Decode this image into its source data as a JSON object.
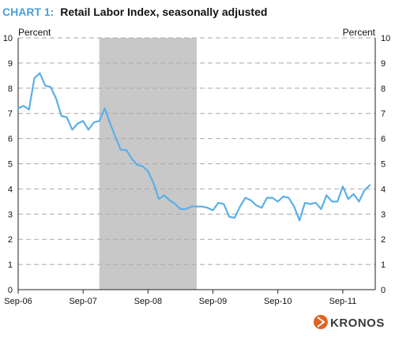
{
  "chart_data": {
    "type": "line",
    "title_prefix": "CHART 1:",
    "title": "Retail Labor Index, seasonally adjusted",
    "left_unit": "Percent",
    "right_unit": "Percent",
    "ylim": [
      0,
      10
    ],
    "y_ticks": [
      "0",
      "1",
      "2",
      "3",
      "4",
      "5",
      "6",
      "7",
      "8",
      "9",
      "10"
    ],
    "x_tick_labels": [
      "Sep-06",
      "Sep-07",
      "Sep-08",
      "Sep-09",
      "Sep-10",
      "Sep-11"
    ],
    "x_tick_months": [
      0,
      12,
      24,
      36,
      48,
      60
    ],
    "recession_shading": {
      "start": "Dec-07",
      "end": "Jun-09"
    },
    "grid": "horizontal dashed",
    "series": [
      {
        "start": "Sep-06",
        "frequency": "monthly",
        "color": "#5aafe8",
        "values": [
          7.2,
          7.3,
          7.15,
          8.4,
          8.6,
          8.1,
          8.05,
          7.6,
          6.9,
          6.85,
          6.35,
          6.6,
          6.7,
          6.35,
          6.65,
          6.7,
          7.2,
          6.6,
          6.05,
          5.55,
          5.55,
          5.2,
          4.95,
          4.9,
          4.7,
          4.25,
          3.6,
          3.75,
          3.55,
          3.4,
          3.2,
          3.2,
          3.3,
          3.3,
          3.3,
          3.25,
          3.15,
          3.45,
          3.4,
          2.9,
          2.85,
          3.3,
          3.65,
          3.55,
          3.35,
          3.25,
          3.65,
          3.65,
          3.5,
          3.7,
          3.65,
          3.3,
          2.75,
          3.45,
          3.4,
          3.45,
          3.2,
          3.75,
          3.5,
          3.5,
          4.1,
          3.6,
          3.8,
          3.5,
          3.95,
          4.15
        ]
      }
    ]
  },
  "branding": {
    "logo_text": "KRONOS",
    "logo_color": "#e2631f"
  },
  "colors": {
    "recession_fill": "#c8c8c8",
    "grid": "#aaaaaa",
    "axis": "#222222"
  }
}
